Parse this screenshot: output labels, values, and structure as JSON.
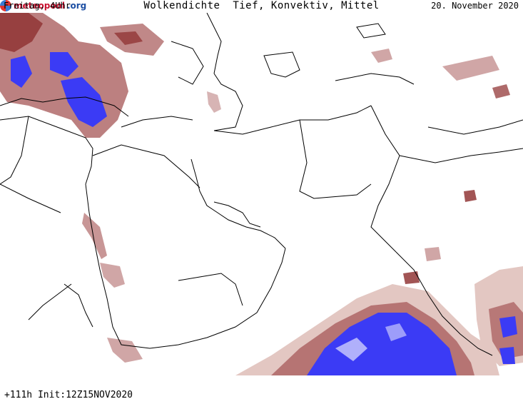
{
  "header": {
    "left": "Freitag, 4Uhr",
    "title": "Wolkendichte  Tief, Konvektiv, Mittel",
    "right": "20. November 2020"
  },
  "footer": {
    "init": "+111h Init:12Z15NOV2020",
    "brand_name": "meteopool",
    "brand_tld": ".org"
  },
  "colors": {
    "cloud_light": "#e3c7c2",
    "cloud_medium": "#b06a6a",
    "cloud_dark": "#8b2b2b",
    "cloud_dense": "#3b3bf5",
    "border": "#000000",
    "background": "#ffffff"
  }
}
